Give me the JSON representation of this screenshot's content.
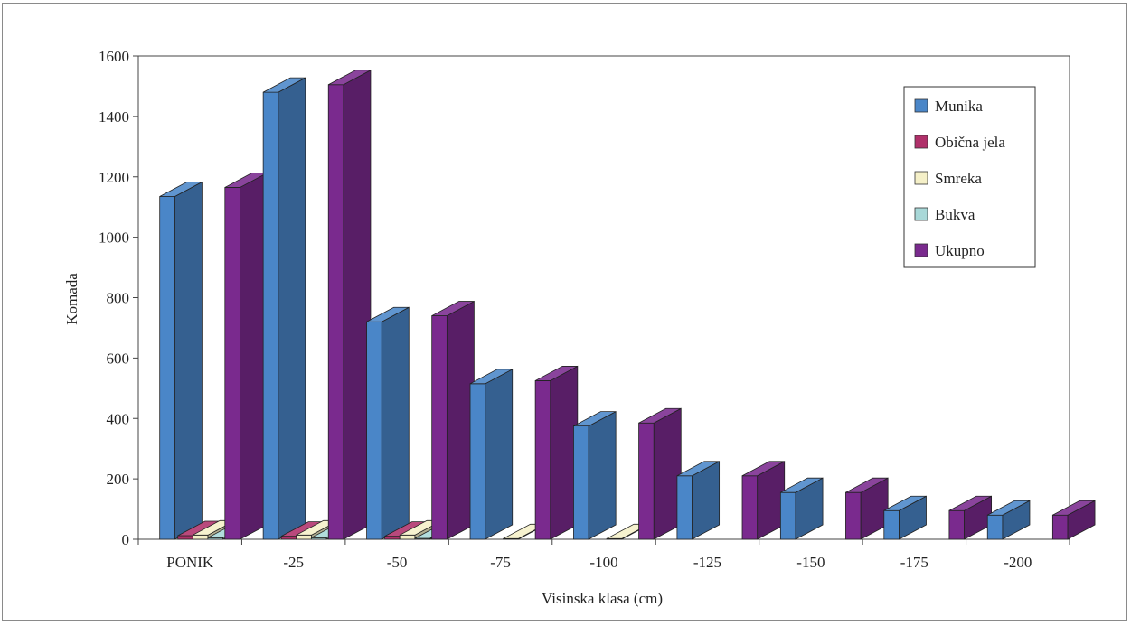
{
  "chart_data": {
    "type": "bar",
    "subtype": "3d-clustered-column",
    "xlabel": "Visinska klasa (cm)",
    "ylabel": "Komada",
    "ylim": [
      0,
      1600
    ],
    "yticks": [
      "0",
      "200",
      "400",
      "600",
      "800",
      "1000",
      "1200",
      "1400",
      "1600"
    ],
    "categories": [
      "PONIK",
      "-25",
      "-50",
      "-75",
      "-100",
      "-125",
      "-150",
      "-175",
      "-200"
    ],
    "series": [
      {
        "name": "Munika",
        "color": "#4a86c8",
        "values": [
          1135,
          1480,
          720,
          515,
          375,
          210,
          155,
          95,
          80
        ]
      },
      {
        "name": "Obična jela",
        "color": "#b0306a",
        "values": [
          12,
          10,
          10,
          0,
          0,
          0,
          0,
          0,
          0
        ]
      },
      {
        "name": "Smreka",
        "color": "#f5f0c8",
        "values": [
          14,
          14,
          14,
          2,
          2,
          0,
          0,
          0,
          0
        ]
      },
      {
        "name": "Bukva",
        "color": "#a8d8d8",
        "values": [
          5,
          5,
          3,
          0,
          0,
          0,
          0,
          0,
          0
        ]
      },
      {
        "name": "Ukupno",
        "color": "#7a2a8e",
        "values": [
          1165,
          1505,
          740,
          525,
          385,
          210,
          155,
          95,
          80
        ]
      }
    ],
    "grid": false,
    "legend_position": "top-right"
  }
}
